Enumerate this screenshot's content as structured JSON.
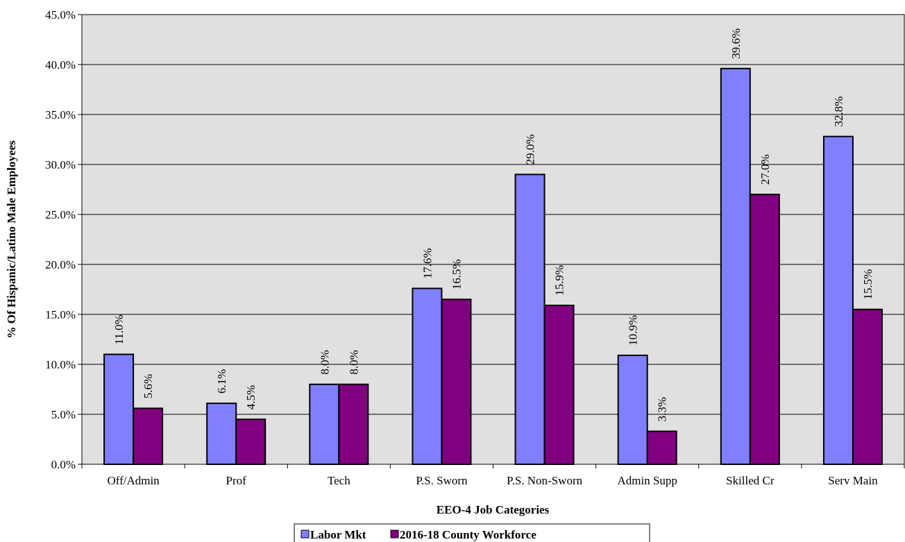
{
  "chart_data": {
    "type": "bar",
    "title": "",
    "xlabel": "EEO-4 Job Categories",
    "ylabel": "% Of Hispanic/Latino Male Employees",
    "ylim": [
      0,
      45
    ],
    "ytick_step": 5,
    "ytick_labels": [
      "0.0%",
      "5.0%",
      "10.0%",
      "15.0%",
      "20.0%",
      "25.0%",
      "30.0%",
      "35.0%",
      "40.0%",
      "45.0%"
    ],
    "categories": [
      "Off/Admin",
      "Prof",
      "Tech",
      "P.S. Sworn",
      "P.S. Non-Sworn",
      "Admin Supp",
      "Skilled Cr",
      "Serv Main"
    ],
    "series": [
      {
        "name": "Labor Mkt",
        "color": "#8080ff",
        "values": [
          11.0,
          6.1,
          8.0,
          17.6,
          29.0,
          10.9,
          39.6,
          32.8
        ],
        "labels": [
          "11.0%",
          "6.1%",
          "8.0%",
          "17.6%",
          "29.0%",
          "10.9%",
          "39.6%",
          "32.8%"
        ]
      },
      {
        "name": "2016-18 County Workforce",
        "color": "#800080",
        "values": [
          5.6,
          4.5,
          8.0,
          16.5,
          15.9,
          3.3,
          27.0,
          15.5
        ],
        "labels": [
          "5.6%",
          "4.5%",
          "8.0%",
          "16.5%",
          "15.9%",
          "3.3%",
          "27.0%",
          "15.5%"
        ]
      }
    ],
    "plot_background": "#e0e0e0",
    "grid": true,
    "legend_position": "bottom-center"
  }
}
